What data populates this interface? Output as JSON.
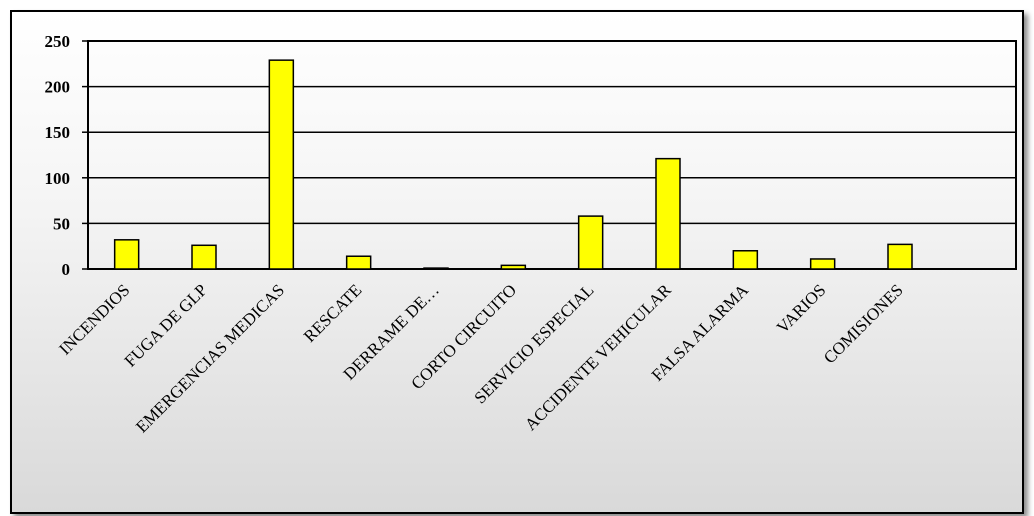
{
  "chart_data": {
    "type": "bar",
    "categories": [
      "INCENDIOS",
      "FUGA DE GLP",
      "EMERGENCIAS MEDICAS",
      "RESCATE",
      "DERRAME DE…",
      "CORTO CIRCUITO",
      "SERVICIO ESPECIAL",
      "ACCIDENTE VEHICULAR",
      "FALSA ALARMA",
      "VARIOS",
      "COMISIONES"
    ],
    "values": [
      32,
      26,
      229,
      14,
      1,
      4,
      58,
      121,
      20,
      11,
      27
    ],
    "ylim": [
      0,
      250
    ],
    "yticks": [
      "0",
      "50",
      "100",
      "150",
      "200",
      "250"
    ],
    "grid": true,
    "bar_color": "#ffff00",
    "bar_border_color": "#000000",
    "slots": 12
  }
}
